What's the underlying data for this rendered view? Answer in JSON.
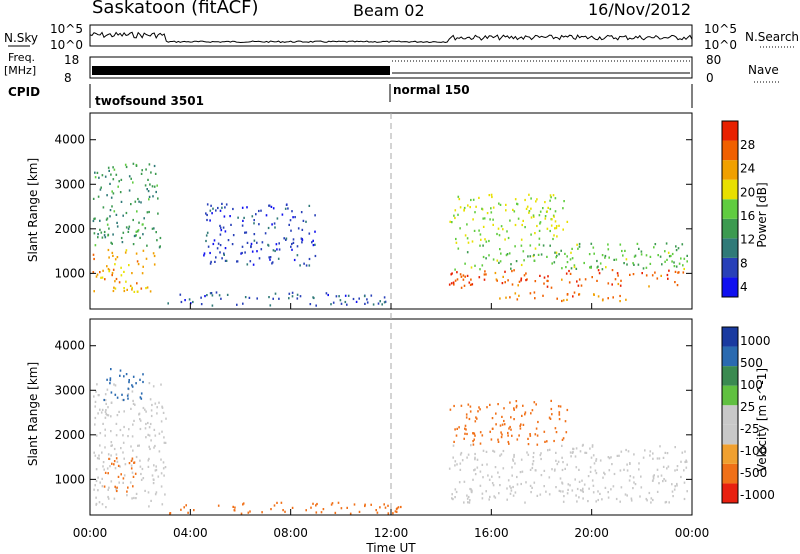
{
  "header": {
    "title": "Saskatoon (fitACF)",
    "beam": "Beam 02",
    "date": "16/Nov/2012"
  },
  "top_panels": {
    "nsky_label": "N.Sky",
    "nsky_ticks": [
      "10^5",
      "10^0"
    ],
    "nsearch_label": "N.Search",
    "nsearch_ticks": [
      "10^5",
      "10^0"
    ],
    "freq_label_1": "Freq.",
    "freq_label_2": "[MHz]",
    "freq_ticks": [
      "18",
      "8"
    ],
    "nave_label": "Nave",
    "nave_ticks": [
      "80",
      "0"
    ],
    "cpid_label": "CPID",
    "cpid_segments": [
      {
        "label": "twofsound 3501",
        "start_hour": 0,
        "end_hour": 12
      },
      {
        "label": "normal 150",
        "start_hour": 12,
        "end_hour": 24
      }
    ]
  },
  "colors": {
    "power_scale": [
      "#1010f0",
      "#2840b8",
      "#307a78",
      "#3c9a50",
      "#60cc40",
      "#e8e000",
      "#f0a000",
      "#f06000",
      "#e82000"
    ],
    "velocity_scale": [
      "#1a3aa0",
      "#2a6ab0",
      "#3a8a50",
      "#60c040",
      "#c8c8c8",
      "#c8c8c8",
      "#f0a030",
      "#f07018",
      "#e82010"
    ],
    "ground_scatter": "#c8c8c8"
  },
  "chart_data": [
    {
      "type": "heatmap",
      "name": "power",
      "ylabel": "Slant Range [km]",
      "y_ticks": [
        1000,
        2000,
        3000,
        4000
      ],
      "ylim": [
        200,
        4600
      ],
      "x_ticks": [
        "00:00",
        "04:00",
        "08:00",
        "12:00",
        "16:00",
        "20:00",
        "00:00"
      ],
      "xlim_hours": [
        0,
        24
      ],
      "colorbar_label": "Power [dB]",
      "colorbar_ticks": [
        "4",
        "8",
        "12",
        "16",
        "20",
        "24",
        "28"
      ],
      "colorbar_range": [
        0,
        30
      ],
      "regions": [
        {
          "t": [
            0.1,
            2.6
          ],
          "r": [
            600,
            1600
          ],
          "level": 22
        },
        {
          "t": [
            0.1,
            2.8
          ],
          "r": [
            1600,
            3500
          ],
          "level": 11
        },
        {
          "t": [
            3.0,
            12.0
          ],
          "r": [
            300,
            600
          ],
          "level": 6
        },
        {
          "t": [
            4.5,
            9.0
          ],
          "r": [
            1200,
            2600
          ],
          "level": 5
        },
        {
          "t": [
            14.3,
            23.8
          ],
          "r": [
            700,
            1100
          ],
          "level": 26
        },
        {
          "t": [
            14.5,
            23.8
          ],
          "r": [
            1100,
            1700
          ],
          "level": 14
        },
        {
          "t": [
            14.3,
            19.0
          ],
          "r": [
            1700,
            2800
          ],
          "level": 17
        },
        {
          "t": [
            16.0,
            22.0
          ],
          "r": [
            400,
            600
          ],
          "level": 24
        }
      ]
    },
    {
      "type": "heatmap",
      "name": "velocity",
      "ylabel": "Slant Range [km]",
      "y_ticks": [
        1000,
        2000,
        3000,
        4000
      ],
      "ylim": [
        200,
        4600
      ],
      "x_ticks": [
        "00:00",
        "04:00",
        "08:00",
        "12:00",
        "16:00",
        "20:00",
        "00:00"
      ],
      "xlim_hours": [
        0,
        24
      ],
      "xlabel": "Time UT",
      "colorbar_label": "Velocity [m s^-1]",
      "colorbar_ticks": [
        "1000",
        "500",
        "100",
        "25",
        "-25",
        "-100",
        "-500",
        "-1000"
      ],
      "regions": [
        {
          "t": [
            0.1,
            3.0
          ],
          "r": [
            400,
            3200
          ],
          "level": "ground"
        },
        {
          "t": [
            0.5,
            1.8
          ],
          "r": [
            700,
            1500
          ],
          "level": -200
        },
        {
          "t": [
            0.5,
            2.2
          ],
          "r": [
            2800,
            3500
          ],
          "level": 300
        },
        {
          "t": [
            3.0,
            12.5
          ],
          "r": [
            250,
            500
          ],
          "level": -200
        },
        {
          "t": [
            14.3,
            23.8
          ],
          "r": [
            500,
            1800
          ],
          "level": "ground"
        },
        {
          "t": [
            14.3,
            19.0
          ],
          "r": [
            1800,
            2800
          ],
          "level": -300
        }
      ]
    }
  ]
}
